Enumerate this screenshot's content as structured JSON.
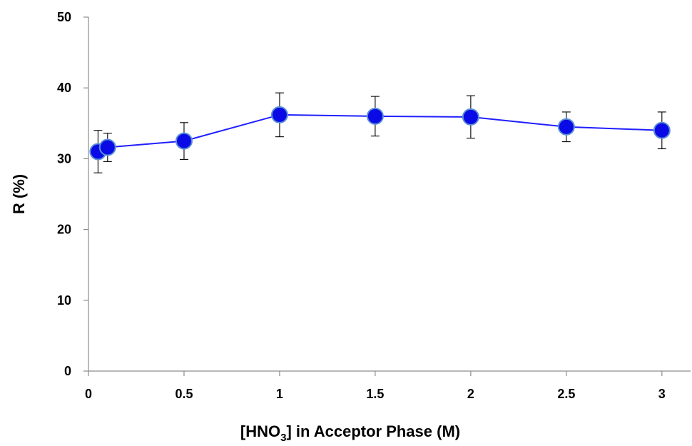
{
  "chart_data": {
    "type": "line",
    "title": "",
    "xlabel": {
      "prefix": "[HNO",
      "subscript": "3",
      "suffix": "] in Acceptor Phase (M)"
    },
    "ylabel": "R (%)",
    "xlim": [
      0,
      3.15
    ],
    "ylim": [
      0,
      50
    ],
    "x_ticks": [
      0,
      0.5,
      1,
      1.5,
      2,
      2.5,
      3
    ],
    "x_tick_labels": [
      "0",
      "0.5",
      "1",
      "1.5",
      "2",
      "2.5",
      "3"
    ],
    "y_ticks": [
      0,
      10,
      20,
      30,
      40,
      50
    ],
    "y_tick_labels": [
      "0",
      "10",
      "20",
      "30",
      "40",
      "50"
    ],
    "grid": false,
    "legend": "none",
    "series": [
      {
        "color": "#1f1fff",
        "marker_color": "#0a0ae6",
        "marker_edge": "#5b8fd6",
        "x": [
          0.05,
          0.1,
          0.5,
          1,
          1.5,
          2,
          2.5,
          3
        ],
        "y": [
          31,
          31.6,
          32.5,
          36.2,
          36,
          35.9,
          34.5,
          34
        ],
        "error": [
          3,
          2,
          2.6,
          3.1,
          2.8,
          3,
          2.1,
          2.6
        ]
      }
    ]
  }
}
